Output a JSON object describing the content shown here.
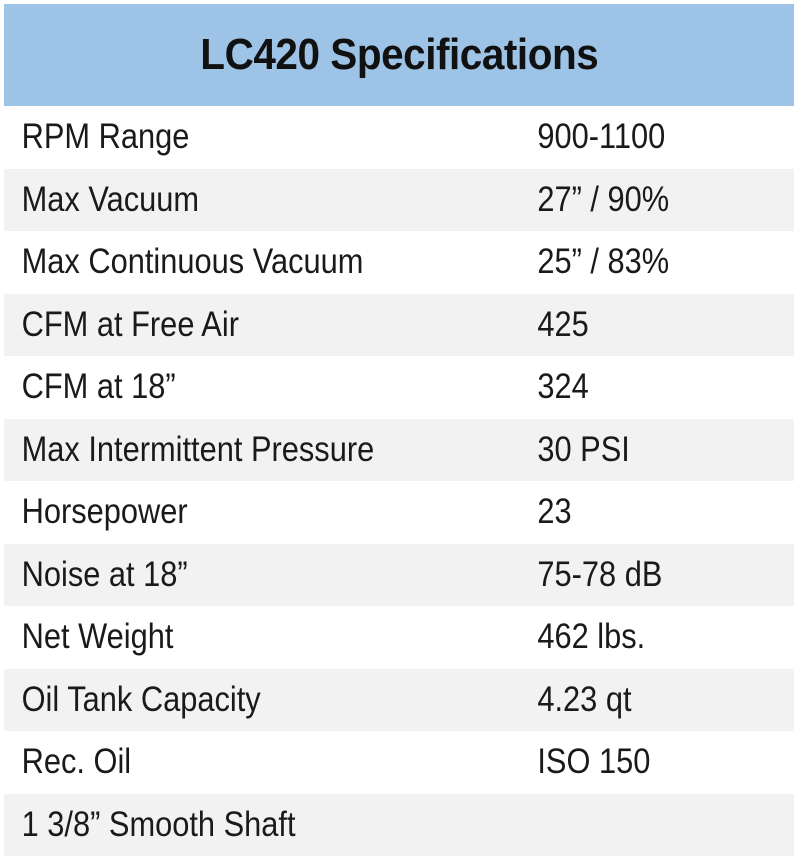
{
  "title": "LC420 Specifications",
  "rows": [
    {
      "label": "RPM Range",
      "value": "900-1100"
    },
    {
      "label": "Max Vacuum",
      "value": "27” / 90%"
    },
    {
      "label": "Max Continuous Vacuum",
      "value": "25” / 83%"
    },
    {
      "label": "CFM at Free Air",
      "value": "425"
    },
    {
      "label": "CFM at 18”",
      "value": "324"
    },
    {
      "label": "Max Intermittent Pressure",
      "value": "30 PSI"
    },
    {
      "label": "Horsepower",
      "value": "23"
    },
    {
      "label": "Noise at 18”",
      "value": "75-78 dB"
    },
    {
      "label": "Net Weight",
      "value": "462 lbs."
    },
    {
      "label": "Oil Tank Capacity",
      "value": "4.23 qt"
    },
    {
      "label": "Rec. Oil",
      "value": "ISO 150"
    },
    {
      "label": "1 3/8” Smooth Shaft",
      "value": ""
    }
  ],
  "colors": {
    "header_bg": "#9dc3e6",
    "row_alt": "#f2f2f2",
    "row": "#ffffff",
    "text": "#1a1a1a"
  }
}
